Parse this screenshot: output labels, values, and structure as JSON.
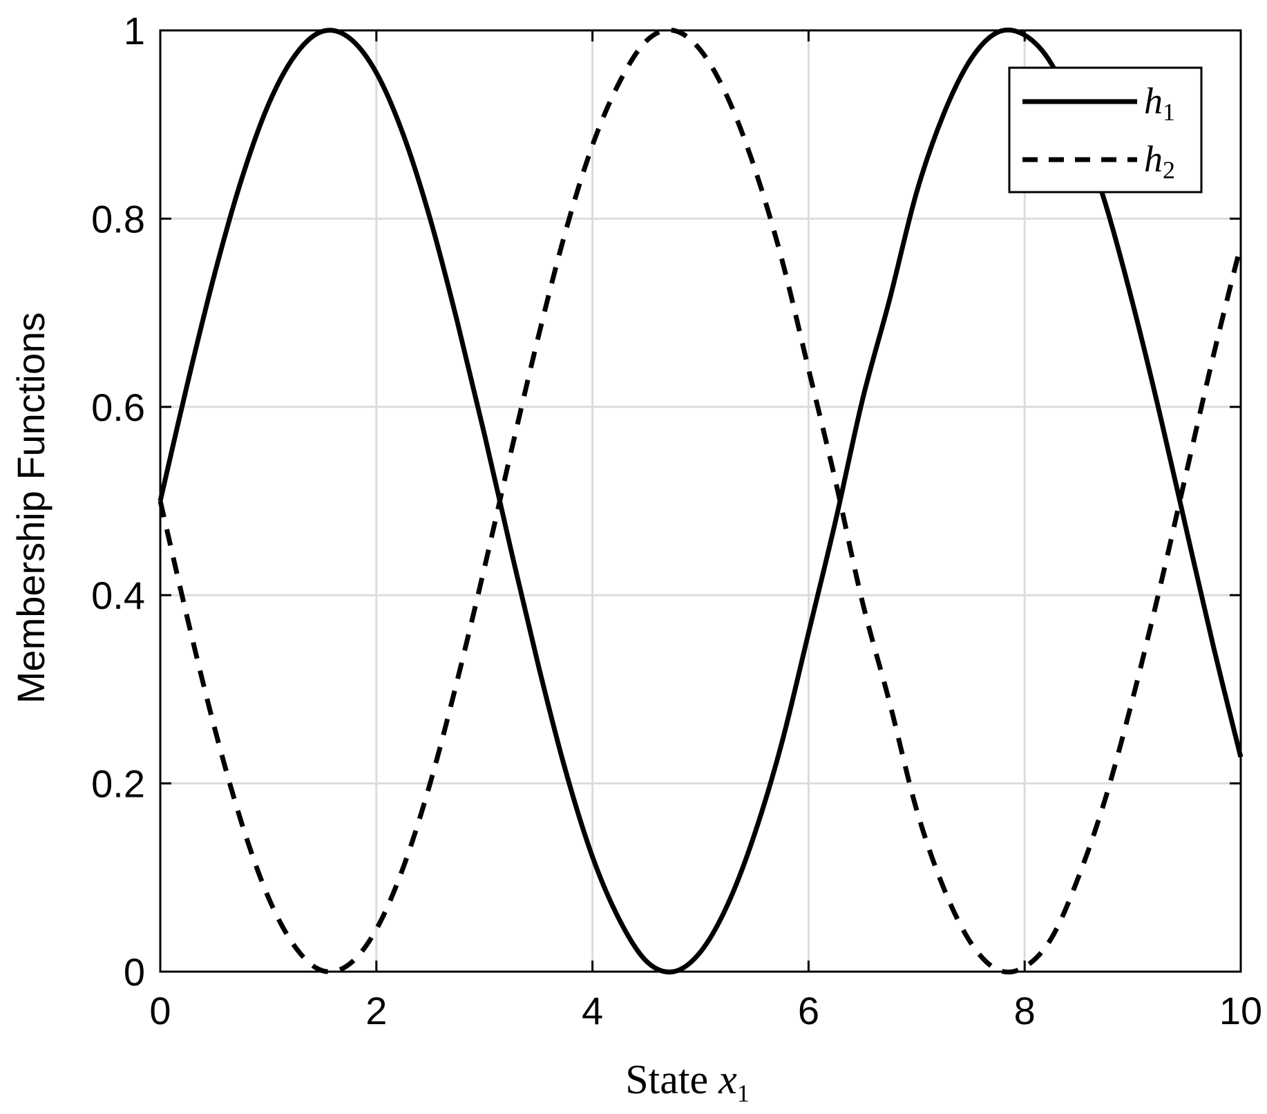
{
  "chart_data": {
    "type": "line",
    "xlabel": {
      "prefix": "State ",
      "var": "x",
      "sub": "1"
    },
    "ylabel": "Membership Functions",
    "xlim": [
      0,
      10
    ],
    "ylim": [
      0,
      1
    ],
    "xticks": [
      0,
      2,
      4,
      6,
      8,
      10
    ],
    "yticks": [
      0,
      0.2,
      0.4,
      0.6,
      0.8,
      1
    ],
    "xtick_labels": [
      "0",
      "2",
      "4",
      "6",
      "8",
      "10"
    ],
    "ytick_labels": [
      "0",
      "0.2",
      "0.4",
      "0.6",
      "0.8",
      "1"
    ],
    "grid": true,
    "legend_position": "top-right",
    "x": [
      0,
      0.25,
      0.5,
      0.75,
      1,
      1.25,
      1.5,
      1.75,
      2,
      2.25,
      2.5,
      2.75,
      3,
      3.25,
      3.5,
      3.75,
      4,
      4.25,
      4.5,
      4.75,
      5,
      5.25,
      5.5,
      5.75,
      6,
      6.25,
      6.5,
      6.75,
      7,
      7.25,
      7.5,
      7.75,
      8,
      8.25,
      8.5,
      8.75,
      9,
      9.25,
      9.5,
      9.75,
      10
    ],
    "series": [
      {
        "name": "h",
        "name_sub": "1",
        "line_style": "solid",
        "color": "#000000",
        "values": [
          0.5,
          0.624,
          0.74,
          0.841,
          0.921,
          0.974,
          0.999,
          0.992,
          0.955,
          0.889,
          0.799,
          0.69,
          0.571,
          0.446,
          0.325,
          0.214,
          0.122,
          0.055,
          0.011,
          0.0,
          0.021,
          0.071,
          0.146,
          0.242,
          0.36,
          0.479,
          0.608,
          0.714,
          0.828,
          0.911,
          0.969,
          0.998,
          0.995,
          0.964,
          0.899,
          0.815,
          0.71,
          0.593,
          0.468,
          0.344,
          0.228
        ]
      },
      {
        "name": "h",
        "name_sub": "2",
        "line_style": "dashed",
        "color": "#000000",
        "values": [
          0.5,
          0.376,
          0.26,
          0.159,
          0.079,
          0.026,
          0.001,
          0.008,
          0.045,
          0.111,
          0.201,
          0.31,
          0.429,
          0.554,
          0.675,
          0.786,
          0.878,
          0.945,
          0.989,
          1.0,
          0.979,
          0.929,
          0.854,
          0.758,
          0.64,
          0.521,
          0.392,
          0.286,
          0.172,
          0.089,
          0.031,
          0.002,
          0.005,
          0.036,
          0.101,
          0.185,
          0.29,
          0.407,
          0.532,
          0.656,
          0.772
        ]
      }
    ]
  }
}
